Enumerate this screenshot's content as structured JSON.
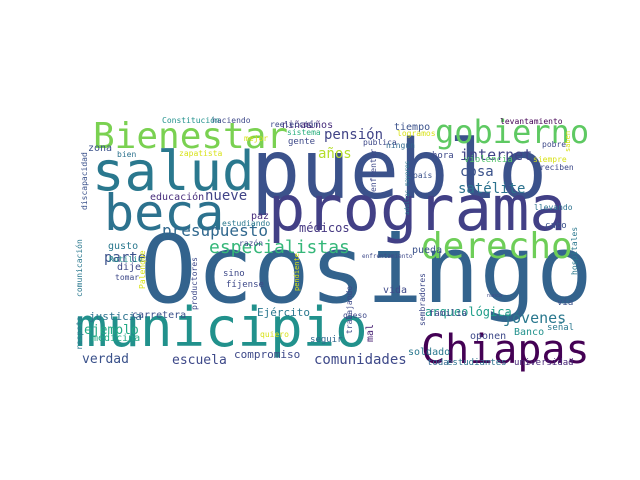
{
  "words": [
    {
      "text": "Ocosingo",
      "color": "#33638d"
    },
    {
      "text": "pueblo",
      "color": "#3b528b"
    },
    {
      "text": "programa",
      "color": "#424086"
    },
    {
      "text": "municipio",
      "color": "#21918c"
    },
    {
      "text": "salud",
      "color": "#2a788e"
    },
    {
      "text": "beca",
      "color": "#2c728e"
    },
    {
      "text": "Chiapas",
      "color": "#440154"
    },
    {
      "text": "derecho",
      "color": "#6ece58"
    },
    {
      "text": "Bienestar",
      "color": "#7ad151"
    },
    {
      "text": "gobierno",
      "color": "#5ec962"
    },
    {
      "text": "especialistas",
      "color": "#35b779"
    },
    {
      "text": "presupuesto",
      "color": "#31688e"
    },
    {
      "text": "comunidades",
      "color": "#3e4989"
    },
    {
      "text": "internet",
      "color": "#404387"
    },
    {
      "text": "pensión",
      "color": "#414487"
    },
    {
      "text": "cosa",
      "color": "#3b528b"
    },
    {
      "text": "satélite",
      "color": "#2c728e"
    },
    {
      "text": "jóvenes",
      "color": "#2a788e"
    },
    {
      "text": "años",
      "color": "#b5de2b"
    },
    {
      "text": "nueve",
      "color": "#404387"
    },
    {
      "text": "parte",
      "color": "#3b528b"
    },
    {
      "text": "ejemplo",
      "color": "#22a884"
    },
    {
      "text": "escuela",
      "color": "#3e4989"
    },
    {
      "text": "verdad",
      "color": "#3b528b"
    },
    {
      "text": "arqueológica",
      "color": "#1f9e89"
    },
    {
      "text": "compromiso",
      "color": "#3e4989"
    },
    {
      "text": "médicos",
      "color": "#453781"
    },
    {
      "text": "Ejército",
      "color": "#2a788e"
    },
    {
      "text": "justicia",
      "color": "#2c728e"
    },
    {
      "text": "medicina",
      "color": "#22a884"
    },
    {
      "text": "educación",
      "color": "#472d7b"
    },
    {
      "text": "carretera",
      "color": "#3b528b"
    },
    {
      "text": "soldado",
      "color": "#2a788e"
    },
    {
      "text": "oponen",
      "color": "#3e4989"
    },
    {
      "text": "Banco",
      "color": "#21918c"
    },
    {
      "text": "tiempo",
      "color": "#3b528b"
    },
    {
      "text": "niños",
      "color": "#472d7b"
    },
    {
      "text": "niñas",
      "color": "#472d7b"
    },
    {
      "text": "vida",
      "color": "#3e4989"
    },
    {
      "text": "pueda",
      "color": "#3b528b"
    },
    {
      "text": "paz",
      "color": "#472d7b"
    },
    {
      "text": "mal",
      "color": "#482173"
    },
    {
      "text": "dije",
      "color": "#3e4989"
    },
    {
      "text": "gusto",
      "color": "#2a788e"
    },
    {
      "text": "zona",
      "color": "#3b528b"
    },
    {
      "text": "hora",
      "color": "#3e4989"
    },
    {
      "text": "cabo",
      "color": "#3b528b"
    },
    {
      "text": "vía",
      "color": "#3b528b"
    },
    {
      "text": "señal",
      "color": "#2a788e"
    },
    {
      "text": "universidad",
      "color": "#482878"
    },
    {
      "text": "toda",
      "color": "#31688e"
    },
    {
      "text": "estudiantes",
      "color": "#2c728e"
    },
    {
      "text": "familia",
      "color": "#3e4989"
    },
    {
      "text": "seguir",
      "color": "#31688e"
    },
    {
      "text": "queso",
      "color": "#3e4989"
    },
    {
      "text": "fíjense",
      "color": "#3e4989"
    },
    {
      "text": "sino",
      "color": "#3e4989"
    },
    {
      "text": "razón",
      "color": "#3e4989"
    },
    {
      "text": "tomar",
      "color": "#3e4989"
    },
    {
      "text": "bien",
      "color": "#2c728e"
    },
    {
      "text": "gente",
      "color": "#3e4989"
    },
    {
      "text": "haciendo",
      "color": "#3e4989"
    },
    {
      "text": "reelección",
      "color": "#3e4989"
    },
    {
      "text": "pública",
      "color": "#3e4989"
    },
    {
      "text": "Constitución",
      "color": "#21918c"
    },
    {
      "text": "sistema",
      "color": "#2ab07f"
    },
    {
      "text": "logramos",
      "color": "#d8e219"
    },
    {
      "text": "ningún",
      "color": "#31688e"
    },
    {
      "text": "enfrentar",
      "color": "#3e4989"
    },
    {
      "text": "país",
      "color": "#3b528b"
    },
    {
      "text": "violencia",
      "color": "#52c569"
    },
    {
      "text": "reciben",
      "color": "#3e4989"
    },
    {
      "text": "pobre",
      "color": "#3e4989"
    },
    {
      "text": "levantamiento",
      "color": "#440154"
    },
    {
      "text": "siempre",
      "color": "#d8e219"
    },
    {
      "text": "saben",
      "color": "#d8e219"
    },
    {
      "text": "llevando",
      "color": "#2c728e"
    },
    {
      "text": "hospitales",
      "color": "#2a788e"
    },
    {
      "text": "zapatista",
      "color": "#d8e219"
    },
    {
      "text": "mejor",
      "color": "#d8e219"
    },
    {
      "text": "estudiando",
      "color": "#2a788e"
    },
    {
      "text": "discapacidad",
      "color": "#3b528b"
    },
    {
      "text": "comunicación",
      "color": "#2a788e"
    },
    {
      "text": "respeta",
      "color": "#2a788e"
    },
    {
      "text": "Rutilio",
      "color": "#21918c"
    },
    {
      "text": "Palenque",
      "color": "#d8e219"
    },
    {
      "text": "productores",
      "color": "#3e4989"
    },
    {
      "text": "trabajando",
      "color": "#3e4989"
    },
    {
      "text": "pendiente",
      "color": "#d8e219"
    },
    {
      "text": "quiero",
      "color": "#d8e219"
    },
    {
      "text": "enfrentamiento",
      "color": "#3e4989"
    },
    {
      "text": "sembradores",
      "color": "#3e4989"
    },
    {
      "text": "adultas mayores",
      "color": "#2a788e"
    },
    {
      "text": "nunca",
      "color": "#3e4989"
    }
  ]
}
